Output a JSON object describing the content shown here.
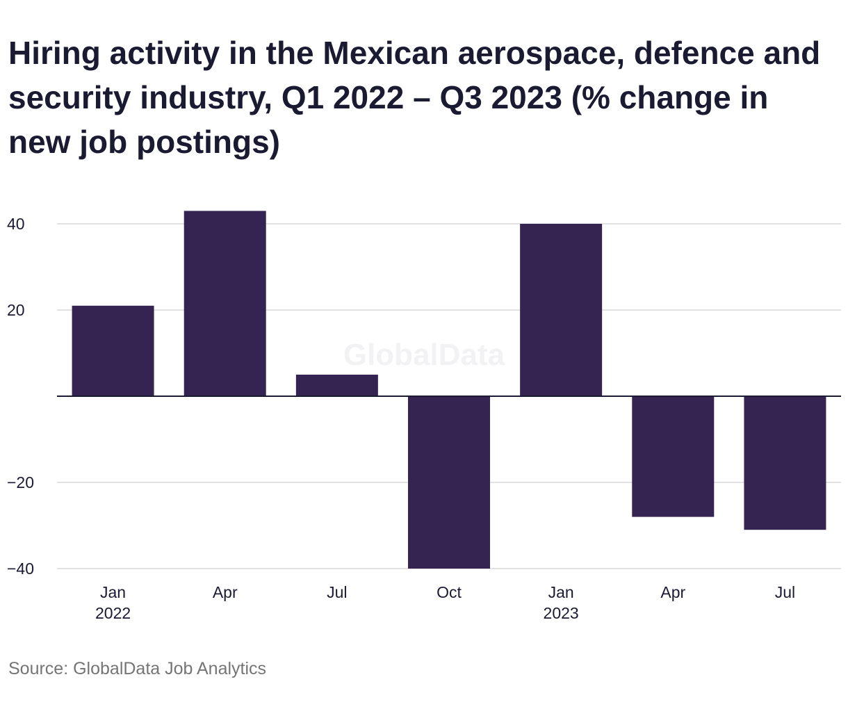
{
  "title": "Hiring activity in the Mexican aerospace, defence and security industry, Q1 2022 – Q3 2023 (% change in new job postings)",
  "source": "Source: GlobalData Job Analytics",
  "watermark": "GlobalData",
  "colors": {
    "bar": "#352452",
    "gridline": "#d9d9d9",
    "zero_line": "#1b1a33",
    "text": "#1b1a33",
    "source_text": "#757575"
  },
  "chart_data": {
    "type": "bar",
    "title": "Hiring activity in the Mexican aerospace, defence and security industry, Q1 2022 – Q3 2023 (% change in new job postings)",
    "categories": [
      {
        "label": "Jan",
        "sublabel": "2022"
      },
      {
        "label": "Apr",
        "sublabel": ""
      },
      {
        "label": "Jul",
        "sublabel": ""
      },
      {
        "label": "Oct",
        "sublabel": ""
      },
      {
        "label": "Jan",
        "sublabel": "2023"
      },
      {
        "label": "Apr",
        "sublabel": ""
      },
      {
        "label": "Jul",
        "sublabel": ""
      }
    ],
    "values": [
      21,
      43,
      5,
      -40,
      40,
      -28,
      -31
    ],
    "ylim": [
      -40,
      45
    ],
    "yticks": [
      {
        "value": 40,
        "label": "40"
      },
      {
        "value": 20,
        "label": "20"
      },
      {
        "value": 0,
        "label": ""
      },
      {
        "value": -20,
        "label": "−20"
      },
      {
        "value": -40,
        "label": "−40"
      }
    ],
    "xlabel": "",
    "ylabel": "",
    "grid": true,
    "legend": "none"
  }
}
